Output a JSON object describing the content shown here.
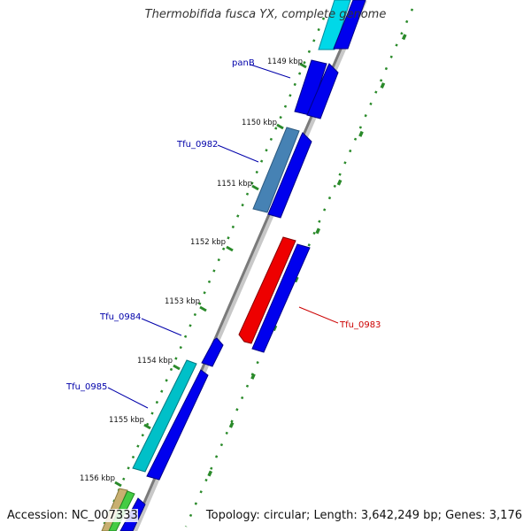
{
  "title": "Thermobifida fusca YX, complete genome",
  "accession": "Accession: NC_007333",
  "topology": "Topology: circular; Length: 3,642,249 bp; Genes: 3,176",
  "colors": {
    "backbone": "#8c8c8c",
    "forward_cds": "#0000ee",
    "gene_label": "#0000aa",
    "highlight_label": "#cc0000",
    "tick": "#2a8a2a"
  },
  "ticks": [
    "1149 kbp",
    "1150 kbp",
    "1151 kbp",
    "1152 kbp",
    "1153 kbp",
    "1154 kbp",
    "1155 kbp",
    "1156 kbp"
  ],
  "gene_labels": [
    {
      "id": "panb",
      "text": "panB",
      "color": "#0000aa"
    },
    {
      "id": "tfu-0982",
      "text": "Tfu_0982",
      "color": "#0000aa"
    },
    {
      "id": "tfu-0983",
      "text": "Tfu_0983",
      "color": "#cc0000"
    },
    {
      "id": "tfu-0984",
      "text": "Tfu_0984",
      "color": "#0000aa"
    },
    {
      "id": "tfu-0985",
      "text": "Tfu_0985",
      "color": "#0000aa"
    }
  ]
}
